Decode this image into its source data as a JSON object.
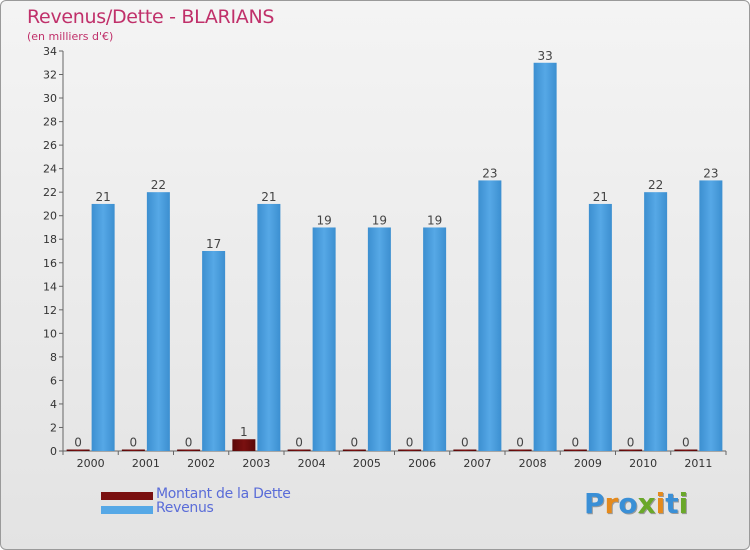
{
  "header": {
    "title": "Revenus/Dette - BLARIANS",
    "subtitle": "(en milliers d'€)"
  },
  "colors": {
    "title": "#c0306a",
    "debt": "#7a1010",
    "revenue": "#56a8e6",
    "legend_text": "#5a6cd8"
  },
  "chart_data": {
    "type": "bar",
    "title": "Revenus/Dette - BLARIANS",
    "ylabel": "(en milliers d'€)",
    "xlabel": "",
    "categories": [
      "2000",
      "2001",
      "2002",
      "2003",
      "2004",
      "2005",
      "2006",
      "2007",
      "2008",
      "2009",
      "2010",
      "2011"
    ],
    "series": [
      {
        "name": "Montant de la Dette",
        "values": [
          0,
          0,
          0,
          1,
          0,
          0,
          0,
          0,
          0,
          0,
          0,
          0
        ]
      },
      {
        "name": "Revenus",
        "values": [
          21,
          22,
          17,
          21,
          19,
          19,
          19,
          23,
          33,
          21,
          22,
          23
        ]
      }
    ],
    "ylim": [
      0,
      34
    ],
    "yticks": [
      0,
      2,
      4,
      6,
      8,
      10,
      12,
      14,
      16,
      18,
      20,
      22,
      24,
      26,
      28,
      30,
      32,
      34
    ],
    "grid": false,
    "legend_position": "bottom-left"
  },
  "legend": {
    "items": [
      {
        "label": "Montant de la Dette",
        "color": "#7a1010"
      },
      {
        "label": "Revenus",
        "color": "#56a8e6"
      }
    ]
  },
  "brand": {
    "letters": [
      "P",
      "r",
      "o",
      "x",
      "i",
      "t",
      "i"
    ],
    "colors": [
      "#3a8fd6",
      "#e58a1c",
      "#3a8fd6",
      "#6aa82a",
      "#e58a1c",
      "#3a8fd6",
      "#6aa82a"
    ]
  }
}
